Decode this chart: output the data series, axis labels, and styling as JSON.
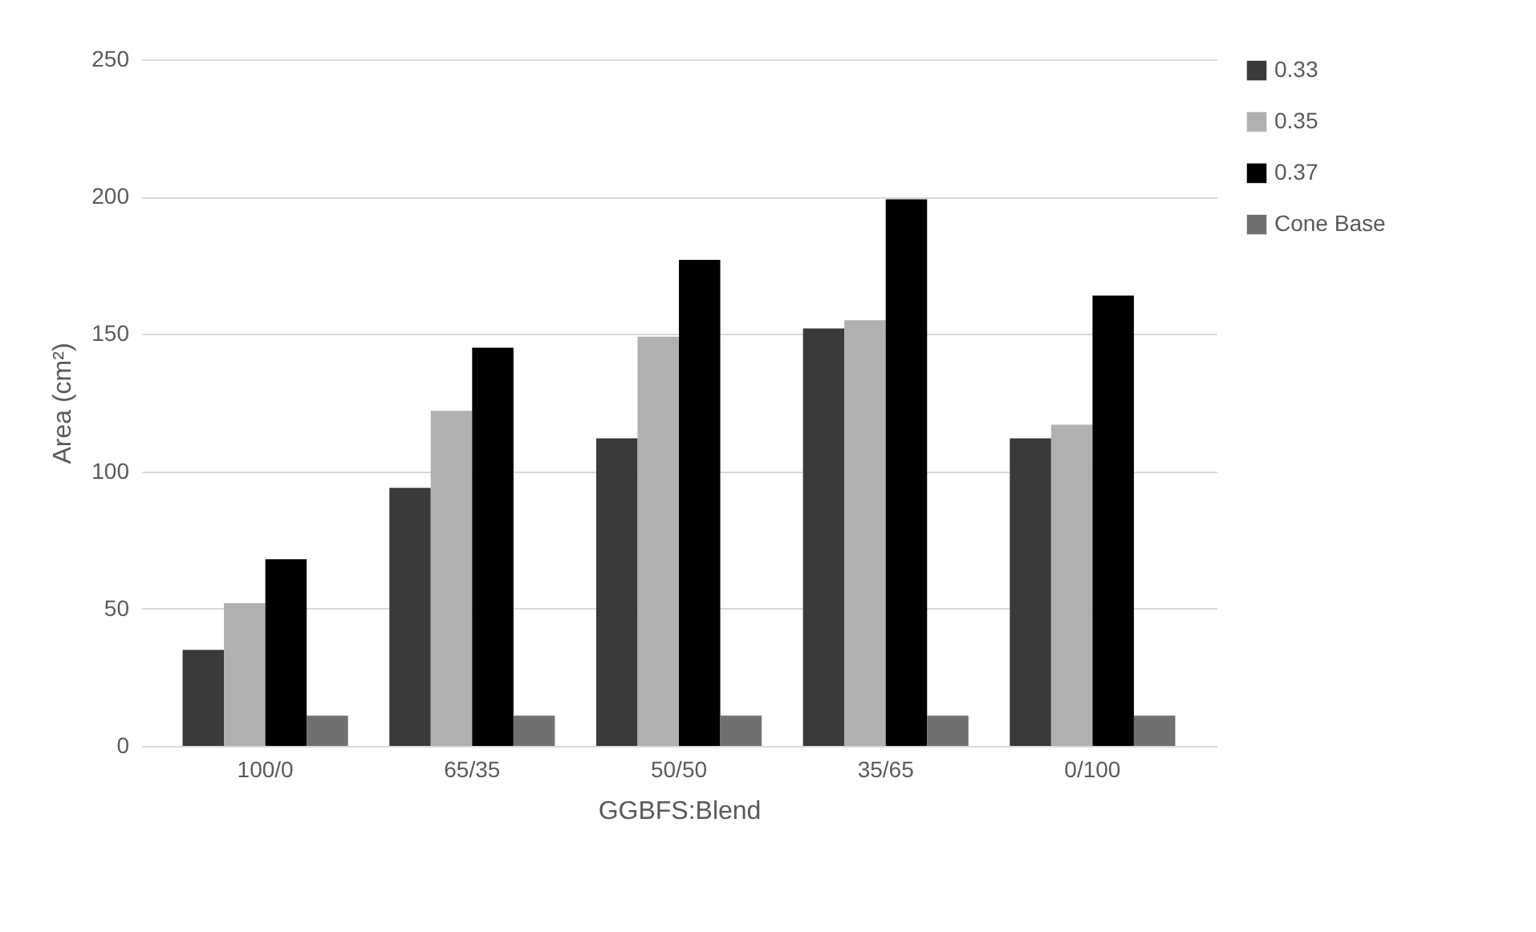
{
  "chart_data": {
    "type": "bar",
    "xlabel": "GGBFS:Blend",
    "ylabel": "Area (cm²)",
    "categories": [
      "100/0",
      "65/35",
      "50/50",
      "35/65",
      "0/100"
    ],
    "series": [
      {
        "name": "0.33",
        "color": "#3a3a3a",
        "values": [
          35,
          94,
          112,
          152,
          112
        ]
      },
      {
        "name": "0.35",
        "color": "#b0b0b0",
        "values": [
          52,
          122,
          149,
          155,
          117
        ]
      },
      {
        "name": "0.37",
        "color": "#000000",
        "values": [
          68,
          145,
          177,
          199,
          164
        ]
      },
      {
        "name": "Cone Base",
        "color": "#707070",
        "values": [
          11,
          11,
          11,
          11,
          11
        ]
      }
    ],
    "ylim": [
      0,
      250
    ],
    "yticks": [
      0,
      50,
      100,
      150,
      200,
      250
    ],
    "grid": "y",
    "legend": "right"
  }
}
